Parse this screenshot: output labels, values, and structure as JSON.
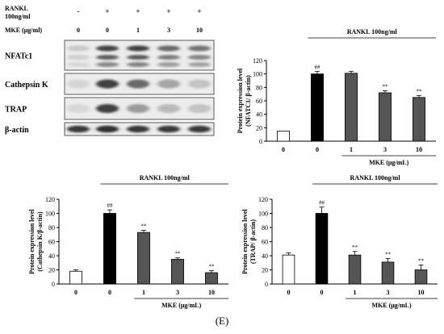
{
  "western_blot": {
    "header_rows": [
      {
        "label_lines": [
          "RANKL",
          "100ng/ml"
        ],
        "values": [
          "-",
          "+",
          "+",
          "+",
          "+"
        ]
      },
      {
        "label_lines": [
          "MKE (μg/ml)"
        ],
        "values": [
          "0",
          "0",
          "1",
          "3",
          "10"
        ]
      }
    ],
    "bands": [
      {
        "name": "NFATc1",
        "intensities": [
          0.12,
          0.78,
          0.8,
          0.6,
          0.55
        ]
      },
      {
        "name": "Cathepsin K",
        "intensities": [
          0.06,
          0.8,
          0.6,
          0.3,
          0.15
        ]
      },
      {
        "name": "TRAP",
        "intensities": [
          0.05,
          0.8,
          0.35,
          0.2,
          0.15
        ]
      },
      {
        "name": "β-actin",
        "intensities": [
          0.85,
          0.9,
          0.85,
          0.85,
          0.85
        ]
      }
    ]
  },
  "chart_data": [
    {
      "type": "bar",
      "ylabel": "Protein expression level (NFATC1/ β-actin)",
      "ylabel_lines": [
        "Protein expression level",
        "(NFATC1/ β-actin)"
      ],
      "ylim": [
        0,
        120
      ],
      "yticks": [
        "0",
        "20",
        "40",
        "60",
        "80",
        "100",
        "120"
      ],
      "categories": [
        "0",
        "0",
        "1",
        "3",
        "10"
      ],
      "values": [
        15,
        100,
        101,
        72,
        65
      ],
      "errors": [
        0,
        4,
        3,
        3,
        3
      ],
      "annotations": [
        "",
        "##",
        "",
        "**",
        "**"
      ],
      "bar_colors": [
        "#ffffff",
        "#000000",
        "#555555",
        "#555555",
        "#555555"
      ],
      "group_label": "RANKL 100ng/ml",
      "xlabel": "MKE (μg/mL)"
    },
    {
      "type": "bar",
      "ylabel": "Protein expression level (Cathepsin K/β-actin)",
      "ylabel_lines": [
        "Protein expression level",
        "(Cathepsin K/β-actin)"
      ],
      "ylim": [
        0,
        120
      ],
      "yticks": [
        "0",
        "20",
        "40",
        "60",
        "80",
        "100",
        "120"
      ],
      "categories": [
        "0",
        "0",
        "1",
        "3",
        "10"
      ],
      "values": [
        18,
        100,
        73,
        35,
        16
      ],
      "errors": [
        2,
        5,
        3,
        2,
        3
      ],
      "annotations": [
        "",
        "##",
        "**",
        "**",
        "**"
      ],
      "bar_colors": [
        "#ffffff",
        "#000000",
        "#555555",
        "#555555",
        "#555555"
      ],
      "group_label": "RANKL 100ng/ml",
      "xlabel": "MKE (μg/mL)"
    },
    {
      "type": "bar",
      "ylabel": "Protein expression level (TRAP/ β-actin)",
      "ylabel_lines": [
        "Protein expression level",
        "(TRAP/ β-actin)"
      ],
      "ylim": [
        0,
        120
      ],
      "yticks": [
        "0",
        "20",
        "40",
        "60",
        "80",
        "100",
        "120"
      ],
      "categories": [
        "0",
        "0",
        "1",
        "3",
        "10"
      ],
      "values": [
        41,
        100,
        41,
        31,
        20
      ],
      "errors": [
        3,
        9,
        5,
        5,
        7
      ],
      "annotations": [
        "",
        "##",
        "**",
        "**",
        "**"
      ],
      "bar_colors": [
        "#ffffff",
        "#000000",
        "#555555",
        "#555555",
        "#555555"
      ],
      "group_label": "RANKL 100ng/ml",
      "xlabel": "MKE (μg/mL)"
    }
  ],
  "panel_label": "(E)"
}
